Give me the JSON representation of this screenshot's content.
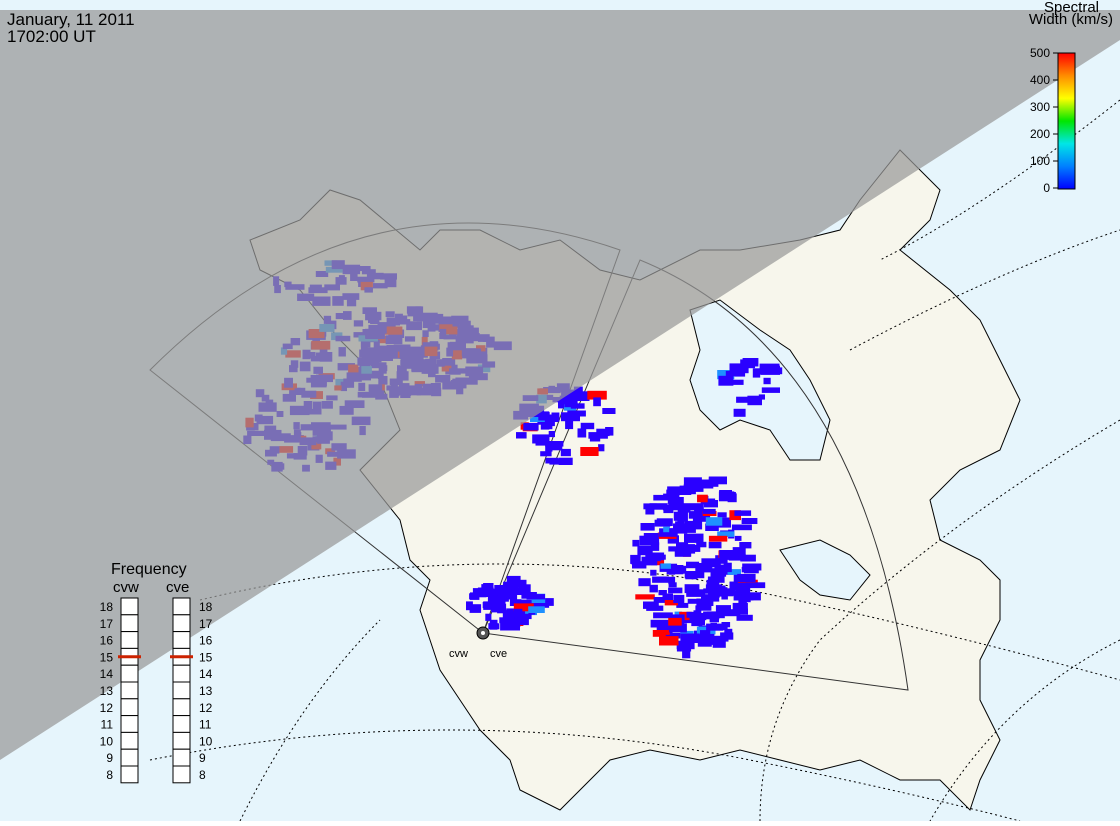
{
  "header": {
    "date": "January, 11 2011",
    "time": "1702:00 UT"
  },
  "colorbar": {
    "title_line1": "Spectral",
    "title_line2": "Width (km/s)",
    "ticks": [
      "500",
      "400",
      "300",
      "200",
      "100",
      "0"
    ],
    "gradient_colors": [
      "#ff0000",
      "#ff8c00",
      "#ffff00",
      "#00e600",
      "#00e6e6",
      "#0080ff",
      "#0000ff"
    ]
  },
  "frequency_panel": {
    "title": "Frequency",
    "radars": [
      {
        "name": "cvw",
        "selected_mhz": 15
      },
      {
        "name": "cve",
        "selected_mhz": 15
      }
    ],
    "scale": [
      "18",
      "17",
      "16",
      "15",
      "14",
      "13",
      "12",
      "11",
      "10",
      "9",
      "8"
    ]
  },
  "radar_sites": {
    "west_label": "cvw",
    "east_label": "cve"
  },
  "colors": {
    "night_shade": "#999999",
    "ocean": "#e6f5fc",
    "land": "#f7f6ec",
    "low_width": "#2a00ff",
    "high_width": "#ff0000",
    "frequency_marker": "#cc2200"
  }
}
